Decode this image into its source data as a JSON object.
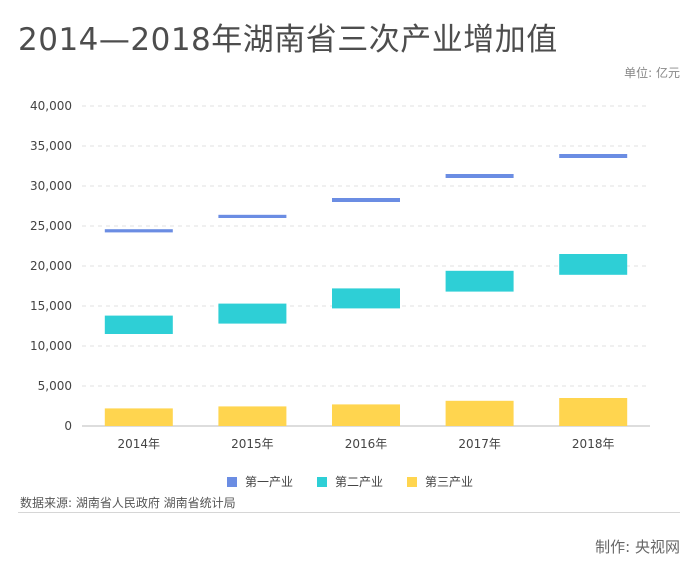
{
  "title": "2014—2018年湖南省三次产业增加值",
  "unit": "单位: 亿元",
  "source": "数据来源: 湖南省人民政府 湖南省统计局",
  "credit": "制作: 央视网",
  "colors": {
    "primary_industry": "#6b8de3",
    "secondary_industry": "#2ecfd6",
    "tertiary_industry": "#ffd54f"
  },
  "chart_data": {
    "type": "bar",
    "categories": [
      "2014年",
      "2015年",
      "2016年",
      "2017年",
      "2018年"
    ],
    "ylim": [
      0,
      40000
    ],
    "yticks": [
      "0",
      "5,000",
      "10,000",
      "15,000",
      "20,000",
      "25,000",
      "30,000",
      "35,000",
      "40,000"
    ],
    "grid": true,
    "legend_position": "bottom-center",
    "series": [
      {
        "name": "第一产业",
        "color": "#6b8de3",
        "ranges": [
          [
            24200,
            24600
          ],
          [
            26000,
            26400
          ],
          [
            28000,
            28500
          ],
          [
            31000,
            31500
          ],
          [
            33500,
            34000
          ]
        ]
      },
      {
        "name": "第二产业",
        "color": "#2ecfd6",
        "ranges": [
          [
            11500,
            13800
          ],
          [
            12800,
            15300
          ],
          [
            14700,
            17200
          ],
          [
            16800,
            19400
          ],
          [
            18900,
            21500
          ]
        ]
      },
      {
        "name": "第三产业",
        "color": "#ffd54f",
        "ranges": [
          [
            0,
            2200
          ],
          [
            0,
            2450
          ],
          [
            0,
            2700
          ],
          [
            0,
            3150
          ],
          [
            0,
            3500
          ]
        ]
      }
    ],
    "legend": [
      {
        "label": "第一产业",
        "color": "#6b8de3"
      },
      {
        "label": "第二产业",
        "color": "#2ecfd6"
      },
      {
        "label": "第三产业",
        "color": "#ffd54f"
      }
    ]
  }
}
